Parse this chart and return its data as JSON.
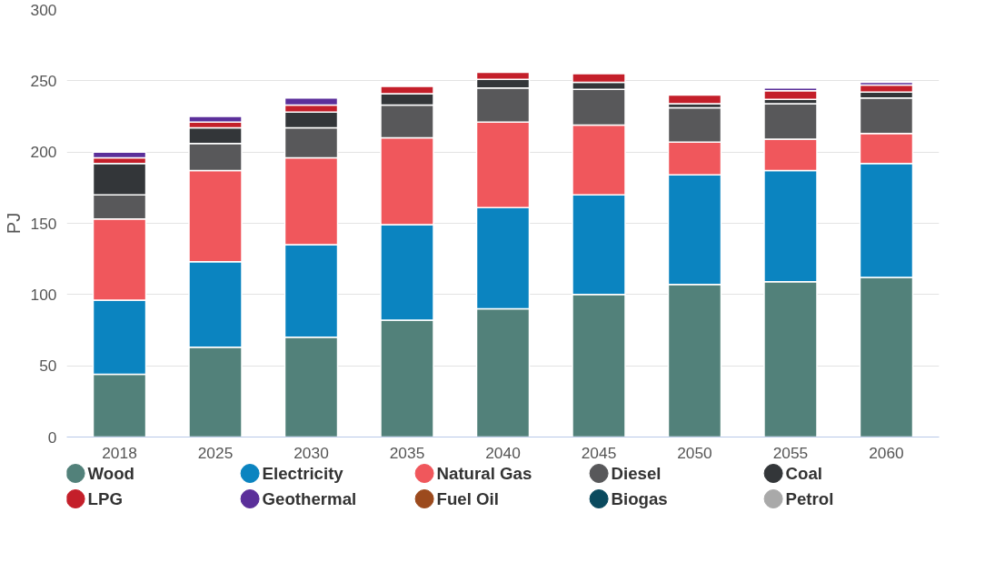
{
  "chart_data": {
    "type": "bar",
    "stacked": true,
    "ylabel": "PJ",
    "categories": [
      "2018",
      "2025",
      "2030",
      "2035",
      "2040",
      "2045",
      "2050",
      "2055",
      "2060"
    ],
    "ylim": [
      0,
      300
    ],
    "yticks": [
      0,
      50,
      100,
      150,
      200,
      250,
      300
    ],
    "grid": "y",
    "legend": "bottom",
    "series": [
      {
        "name": "Wood",
        "color": "#52817a",
        "values": [
          44,
          63,
          70,
          82,
          90,
          100,
          107,
          109,
          112
        ]
      },
      {
        "name": "Electricity",
        "color": "#0b84c0",
        "values": [
          52,
          60,
          65,
          67,
          71,
          70,
          77,
          78,
          80
        ]
      },
      {
        "name": "Natural Gas",
        "color": "#f0575c",
        "values": [
          57,
          64,
          61,
          61,
          60,
          49,
          23,
          22,
          21
        ]
      },
      {
        "name": "Diesel",
        "color": "#58585a",
        "values": [
          17,
          19,
          21,
          23,
          24,
          25,
          24,
          25,
          25
        ]
      },
      {
        "name": "Coal",
        "color": "#333639",
        "values": [
          22,
          11,
          11,
          8,
          6,
          5,
          3,
          3,
          4
        ]
      },
      {
        "name": "LPG",
        "color": "#c41f2a",
        "values": [
          4,
          4,
          5,
          5,
          5,
          6,
          6,
          6,
          5
        ]
      },
      {
        "name": "Geothermal",
        "color": "#5b2f9a",
        "values": [
          4,
          4,
          5,
          null,
          null,
          null,
          null,
          2,
          2
        ]
      },
      {
        "name": "Fuel Oil",
        "color": "#9c4a1d",
        "values": [
          null,
          null,
          null,
          null,
          null,
          null,
          null,
          null,
          null
        ]
      },
      {
        "name": "Biogas",
        "color": "#0a4a5e",
        "values": [
          null,
          null,
          null,
          null,
          null,
          null,
          null,
          null,
          null
        ]
      },
      {
        "name": "Petrol",
        "color": "#a9a9a9",
        "values": [
          null,
          null,
          null,
          null,
          null,
          null,
          null,
          null,
          null
        ]
      }
    ]
  }
}
